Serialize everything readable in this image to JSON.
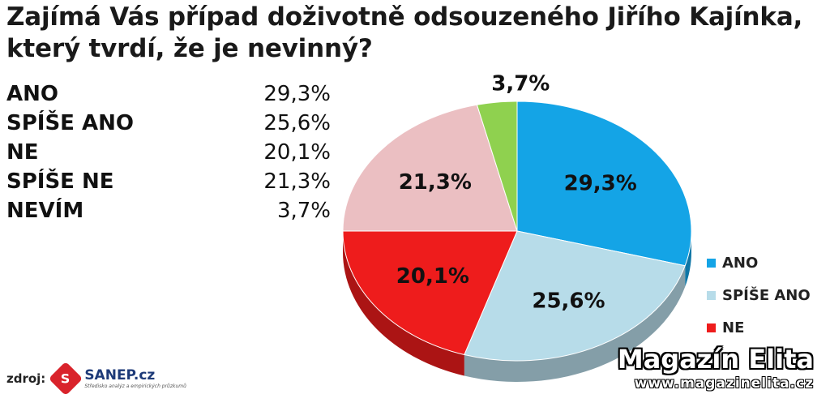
{
  "title": "Zajímá Vás případ doživotně odsouzeného Jiřího Kajínka, který tvrdí, že je nevinný?",
  "table": [
    {
      "label": "ANO",
      "value": "29,3%"
    },
    {
      "label": "SPÍŠE ANO",
      "value": "25,6%"
    },
    {
      "label": "NE",
      "value": "20,1%"
    },
    {
      "label": "SPÍŠE NE",
      "value": "21,3%"
    },
    {
      "label": "NEVÍM",
      "value": "3,7%"
    }
  ],
  "chart_data": {
    "type": "pie",
    "title": "Zajímá Vás případ doživotně odsouzeného Jiřího Kajínka, který tvrdí, že je nevinný?",
    "categories": [
      "ANO",
      "SPÍŠE ANO",
      "NE",
      "SPÍŠE NE",
      "NEVÍM"
    ],
    "values": [
      29.3,
      25.6,
      20.1,
      21.3,
      3.7
    ],
    "data_labels": [
      "29,3%",
      "25,6%",
      "20,1%",
      "21,3%",
      "3,7%"
    ],
    "colors": [
      "#14a4e6",
      "#b7dce9",
      "#ee1c1c",
      "#ebbfc2",
      "#8fd14f"
    ],
    "legend_visible": [
      "ANO",
      "SPÍŠE ANO",
      "NE"
    ],
    "legend_position": "right"
  },
  "source": {
    "label": "zdroj:",
    "logo_text": "SANEP.cz",
    "logo_tagline": "Středisko analýz a empirických průzkumů"
  },
  "watermark": {
    "title": "Magazín Elita",
    "url": "www.magazinelita.cz"
  }
}
